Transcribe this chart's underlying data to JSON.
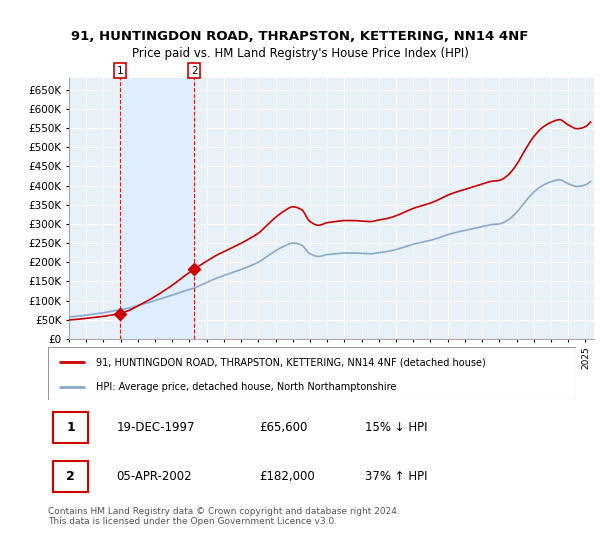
{
  "title_line1": "91, HUNTINGDON ROAD, THRAPSTON, KETTERING, NN14 4NF",
  "title_line2": "Price paid vs. HM Land Registry's House Price Index (HPI)",
  "sale1_date": "19-DEC-1997",
  "sale1_price": 65600,
  "sale1_hpi_diff": "15% ↓ HPI",
  "sale2_date": "05-APR-2002",
  "sale2_price": 182000,
  "sale2_hpi_diff": "37% ↑ HPI",
  "legend_label_red": "91, HUNTINGDON ROAD, THRAPSTON, KETTERING, NN14 4NF (detached house)",
  "legend_label_blue": "HPI: Average price, detached house, North Northamptonshire",
  "footer": "Contains HM Land Registry data © Crown copyright and database right 2024.\nThis data is licensed under the Open Government Licence v3.0.",
  "red_color": "#cc0000",
  "blue_color": "#88aacc",
  "shade_color": "#ddeeff",
  "vline_color": "#cc0000",
  "grid_color": "#bbccdd",
  "bg_plot_color": "#e8f0f8",
  "ylim": [
    0,
    680000
  ],
  "yticks": [
    0,
    50000,
    100000,
    150000,
    200000,
    250000,
    300000,
    350000,
    400000,
    450000,
    500000,
    550000,
    600000,
    650000
  ],
  "sale1_x": 1997.96,
  "sale2_x": 2002.27,
  "xmin": 1995.0,
  "xmax": 2025.5
}
